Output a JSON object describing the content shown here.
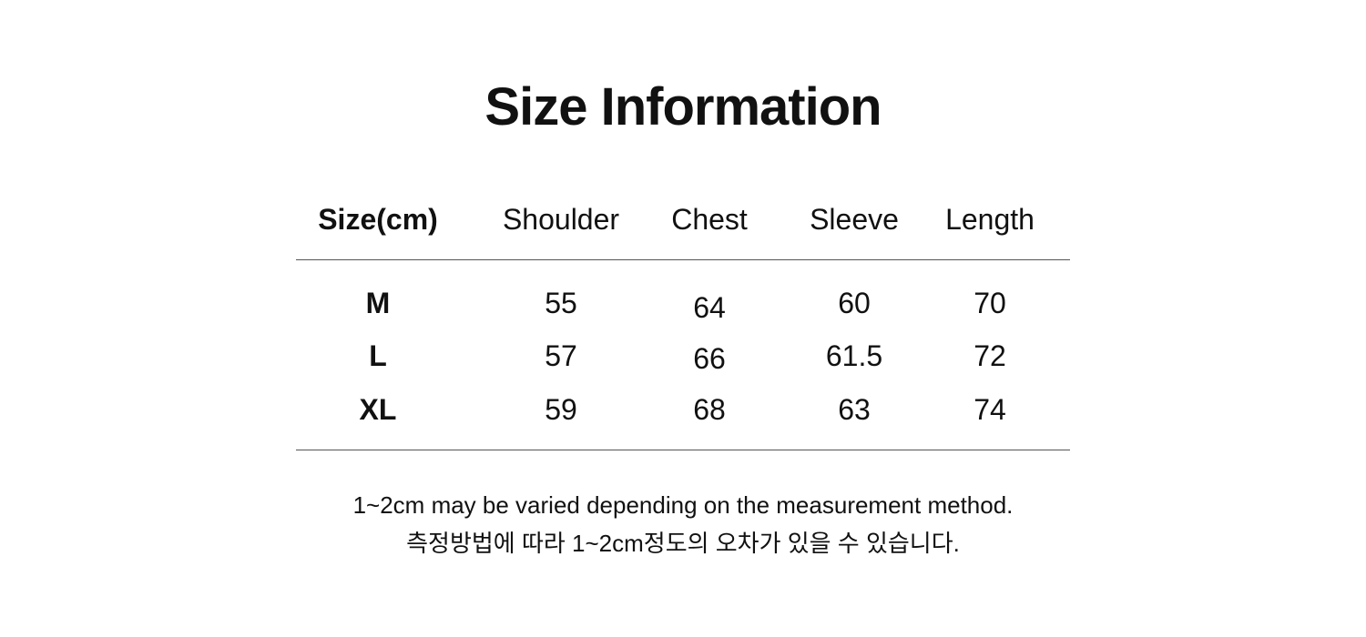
{
  "title": "Size Information",
  "table": {
    "headers": [
      "Size(cm)",
      "Shoulder",
      "Chest",
      "Sleeve",
      "Length"
    ],
    "rows": [
      [
        "M",
        "55",
        "64",
        "60",
        "70"
      ],
      [
        "L",
        "57",
        "66",
        "61.5",
        "72"
      ],
      [
        "XL",
        "59",
        "68",
        "63",
        "74"
      ]
    ]
  },
  "notes": {
    "english": "1~2cm may be varied depending on the measurement method.",
    "korean": "측정방법에 따라 1~2cm정도의 오차가 있을 수 있습니다."
  }
}
